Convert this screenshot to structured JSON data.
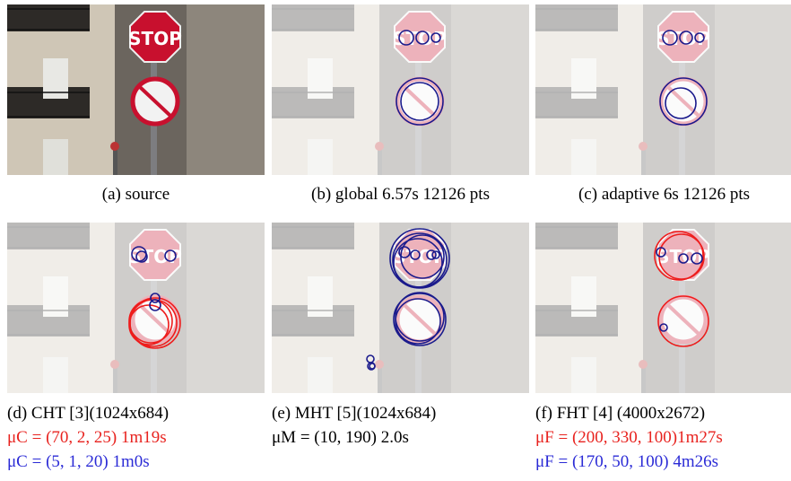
{
  "panels": [
    {
      "caption": [
        {
          "text": "(a) source",
          "color": "#000000"
        }
      ]
    },
    {
      "caption": [
        {
          "text": "(b) global 6.57s 12126 pts",
          "color": "#000000"
        }
      ]
    },
    {
      "caption": [
        {
          "text": "(c) adaptive 6s 12126 pts",
          "color": "#000000"
        }
      ]
    },
    {
      "caption": [
        {
          "text": "(d) CHT [3](1024x684)",
          "color": "#000000"
        },
        {
          "text": "μC = (70, 2, 25) 1m19s",
          "color": "#e8231f"
        },
        {
          "text": "μC = (5, 1, 20) 1m0s",
          "color": "#2b2bd6"
        }
      ]
    },
    {
      "caption": [
        {
          "text": "(e) MHT [5](1024x684)",
          "color": "#000000"
        },
        {
          "text": "μM = (10, 190) 2.0s",
          "color": "#000000"
        }
      ]
    },
    {
      "caption": [
        {
          "text": "(f) FHT [4] (4000x2672)",
          "color": "#000000"
        },
        {
          "text": "μF = (200, 330, 100)1m27s",
          "color": "#e8231f"
        },
        {
          "text": "μF = (170, 50, 100) 4m26s",
          "color": "#2b2bd6"
        }
      ]
    }
  ]
}
